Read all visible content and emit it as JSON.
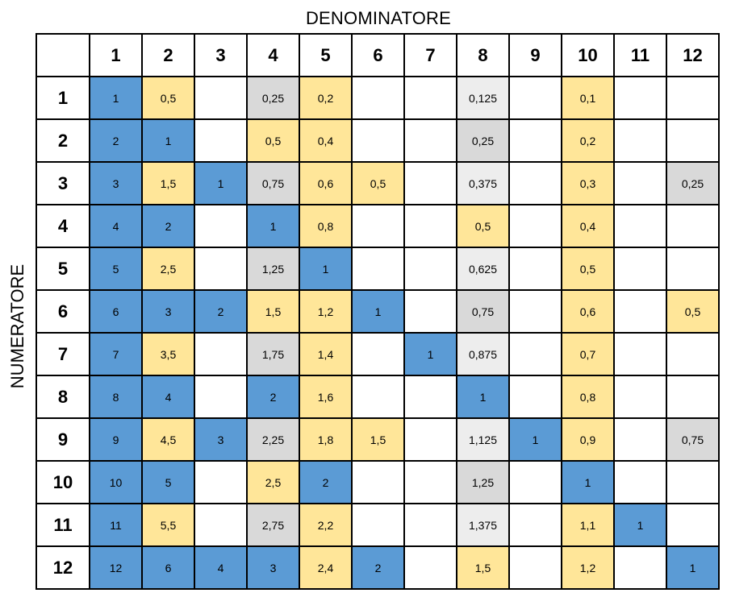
{
  "chart_data": {
    "type": "table",
    "xlabel": "DENOMINATORE",
    "ylabel": "NUMERATORE",
    "columns": [
      "1",
      "2",
      "3",
      "4",
      "5",
      "6",
      "7",
      "8",
      "9",
      "10",
      "11",
      "12"
    ],
    "rows": [
      {
        "label": "1",
        "cells": [
          "1",
          "0,5",
          "",
          "0,25",
          "0,2",
          "",
          "",
          "0,125",
          "",
          "0,1",
          "",
          ""
        ]
      },
      {
        "label": "2",
        "cells": [
          "2",
          "1",
          "",
          "0,5",
          "0,4",
          "",
          "",
          "0,25",
          "",
          "0,2",
          "",
          ""
        ]
      },
      {
        "label": "3",
        "cells": [
          "3",
          "1,5",
          "1",
          "0,75",
          "0,6",
          "0,5",
          "",
          "0,375",
          "",
          "0,3",
          "",
          "0,25"
        ]
      },
      {
        "label": "4",
        "cells": [
          "4",
          "2",
          "",
          "1",
          "0,8",
          "",
          "",
          "0,5",
          "",
          "0,4",
          "",
          ""
        ]
      },
      {
        "label": "5",
        "cells": [
          "5",
          "2,5",
          "",
          "1,25",
          "1",
          "",
          "",
          "0,625",
          "",
          "0,5",
          "",
          ""
        ]
      },
      {
        "label": "6",
        "cells": [
          "6",
          "3",
          "2",
          "1,5",
          "1,2",
          "1",
          "",
          "0,75",
          "",
          "0,6",
          "",
          "0,5"
        ]
      },
      {
        "label": "7",
        "cells": [
          "7",
          "3,5",
          "",
          "1,75",
          "1,4",
          "",
          "1",
          "0,875",
          "",
          "0,7",
          "",
          ""
        ]
      },
      {
        "label": "8",
        "cells": [
          "8",
          "4",
          "",
          "2",
          "1,6",
          "",
          "",
          "1",
          "",
          "0,8",
          "",
          ""
        ]
      },
      {
        "label": "9",
        "cells": [
          "9",
          "4,5",
          "3",
          "2,25",
          "1,8",
          "1,5",
          "",
          "1,125",
          "1",
          "0,9",
          "",
          "0,75"
        ]
      },
      {
        "label": "10",
        "cells": [
          "10",
          "5",
          "",
          "2,5",
          "2",
          "",
          "",
          "1,25",
          "",
          "1",
          "",
          ""
        ]
      },
      {
        "label": "11",
        "cells": [
          "11",
          "5,5",
          "",
          "2,75",
          "2,2",
          "",
          "",
          "1,375",
          "",
          "1,1",
          "1",
          ""
        ]
      },
      {
        "label": "12",
        "cells": [
          "12",
          "6",
          "4",
          "3",
          "2,4",
          "2",
          "",
          "1,5",
          "",
          "1,2",
          "",
          "1"
        ]
      }
    ],
    "cell_colors": [
      [
        "blue",
        "yellow",
        "white",
        "gray",
        "yellow",
        "white",
        "white",
        "lightgray",
        "white",
        "yellow",
        "white",
        "white"
      ],
      [
        "blue",
        "blue",
        "white",
        "yellow",
        "yellow",
        "white",
        "white",
        "gray",
        "white",
        "yellow",
        "white",
        "white"
      ],
      [
        "blue",
        "yellow",
        "blue",
        "gray",
        "yellow",
        "yellow",
        "white",
        "lightgray",
        "white",
        "yellow",
        "white",
        "gray"
      ],
      [
        "blue",
        "blue",
        "white",
        "blue",
        "yellow",
        "white",
        "white",
        "yellow",
        "white",
        "yellow",
        "white",
        "white"
      ],
      [
        "blue",
        "yellow",
        "white",
        "gray",
        "blue",
        "white",
        "white",
        "lightgray",
        "white",
        "yellow",
        "white",
        "white"
      ],
      [
        "blue",
        "blue",
        "blue",
        "yellow",
        "yellow",
        "blue",
        "white",
        "gray",
        "white",
        "yellow",
        "white",
        "yellow"
      ],
      [
        "blue",
        "yellow",
        "white",
        "gray",
        "yellow",
        "white",
        "blue",
        "lightgray",
        "white",
        "yellow",
        "white",
        "white"
      ],
      [
        "blue",
        "blue",
        "white",
        "blue",
        "yellow",
        "white",
        "white",
        "blue",
        "white",
        "yellow",
        "white",
        "white"
      ],
      [
        "blue",
        "yellow",
        "blue",
        "gray",
        "yellow",
        "yellow",
        "white",
        "lightgray",
        "blue",
        "yellow",
        "white",
        "gray"
      ],
      [
        "blue",
        "blue",
        "white",
        "yellow",
        "blue",
        "white",
        "white",
        "gray",
        "white",
        "blue",
        "white",
        "white"
      ],
      [
        "blue",
        "yellow",
        "white",
        "gray",
        "yellow",
        "white",
        "white",
        "lightgray",
        "white",
        "yellow",
        "blue",
        "white"
      ],
      [
        "blue",
        "blue",
        "blue",
        "blue",
        "yellow",
        "blue",
        "white",
        "yellow",
        "white",
        "yellow",
        "white",
        "blue"
      ]
    ],
    "palette": {
      "blue": "#5b9bd5",
      "yellow": "#ffe699",
      "gray": "#d9d9d9",
      "lightgray": "#ededed",
      "white": "#ffffff"
    }
  }
}
